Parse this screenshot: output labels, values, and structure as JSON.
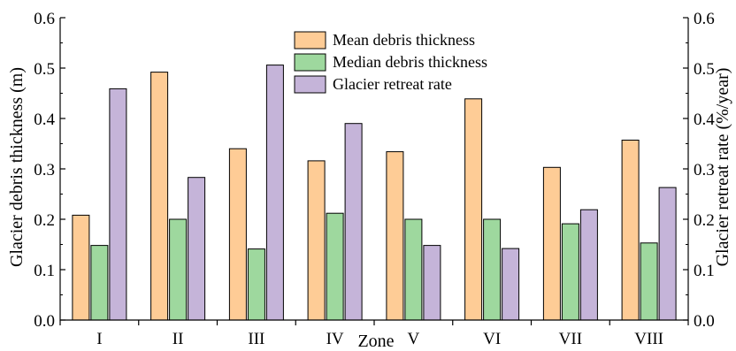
{
  "chart_data": {
    "type": "bar",
    "xlabel": "Zone",
    "ylabel_left": "Glacier debris thickness (m)",
    "ylabel_right": "Glacier retreat rate (%/year)",
    "categories": [
      "I",
      "II",
      "III",
      "IV",
      "V",
      "VI",
      "VII",
      "VIII"
    ],
    "ylim": [
      0,
      0.6
    ],
    "yticks": [
      "0.0",
      "0.1",
      "0.2",
      "0.3",
      "0.4",
      "0.5",
      "0.6"
    ],
    "grid": false,
    "legend_position": "top-center",
    "series": [
      {
        "name": "Mean debris thickness",
        "axis": "left",
        "color": "#FECC96",
        "values": [
          0.208,
          0.492,
          0.34,
          0.316,
          0.334,
          0.439,
          0.303,
          0.357
        ]
      },
      {
        "name": "Median debris thickness",
        "axis": "left",
        "color": "#9ED89E",
        "values": [
          0.148,
          0.2,
          0.141,
          0.212,
          0.2,
          0.2,
          0.191,
          0.153
        ]
      },
      {
        "name": "Glacier retreat rate",
        "axis": "right",
        "color": "#C5B4D9",
        "values": [
          0.459,
          0.283,
          0.506,
          0.39,
          0.148,
          0.142,
          0.219,
          0.263
        ]
      }
    ]
  }
}
